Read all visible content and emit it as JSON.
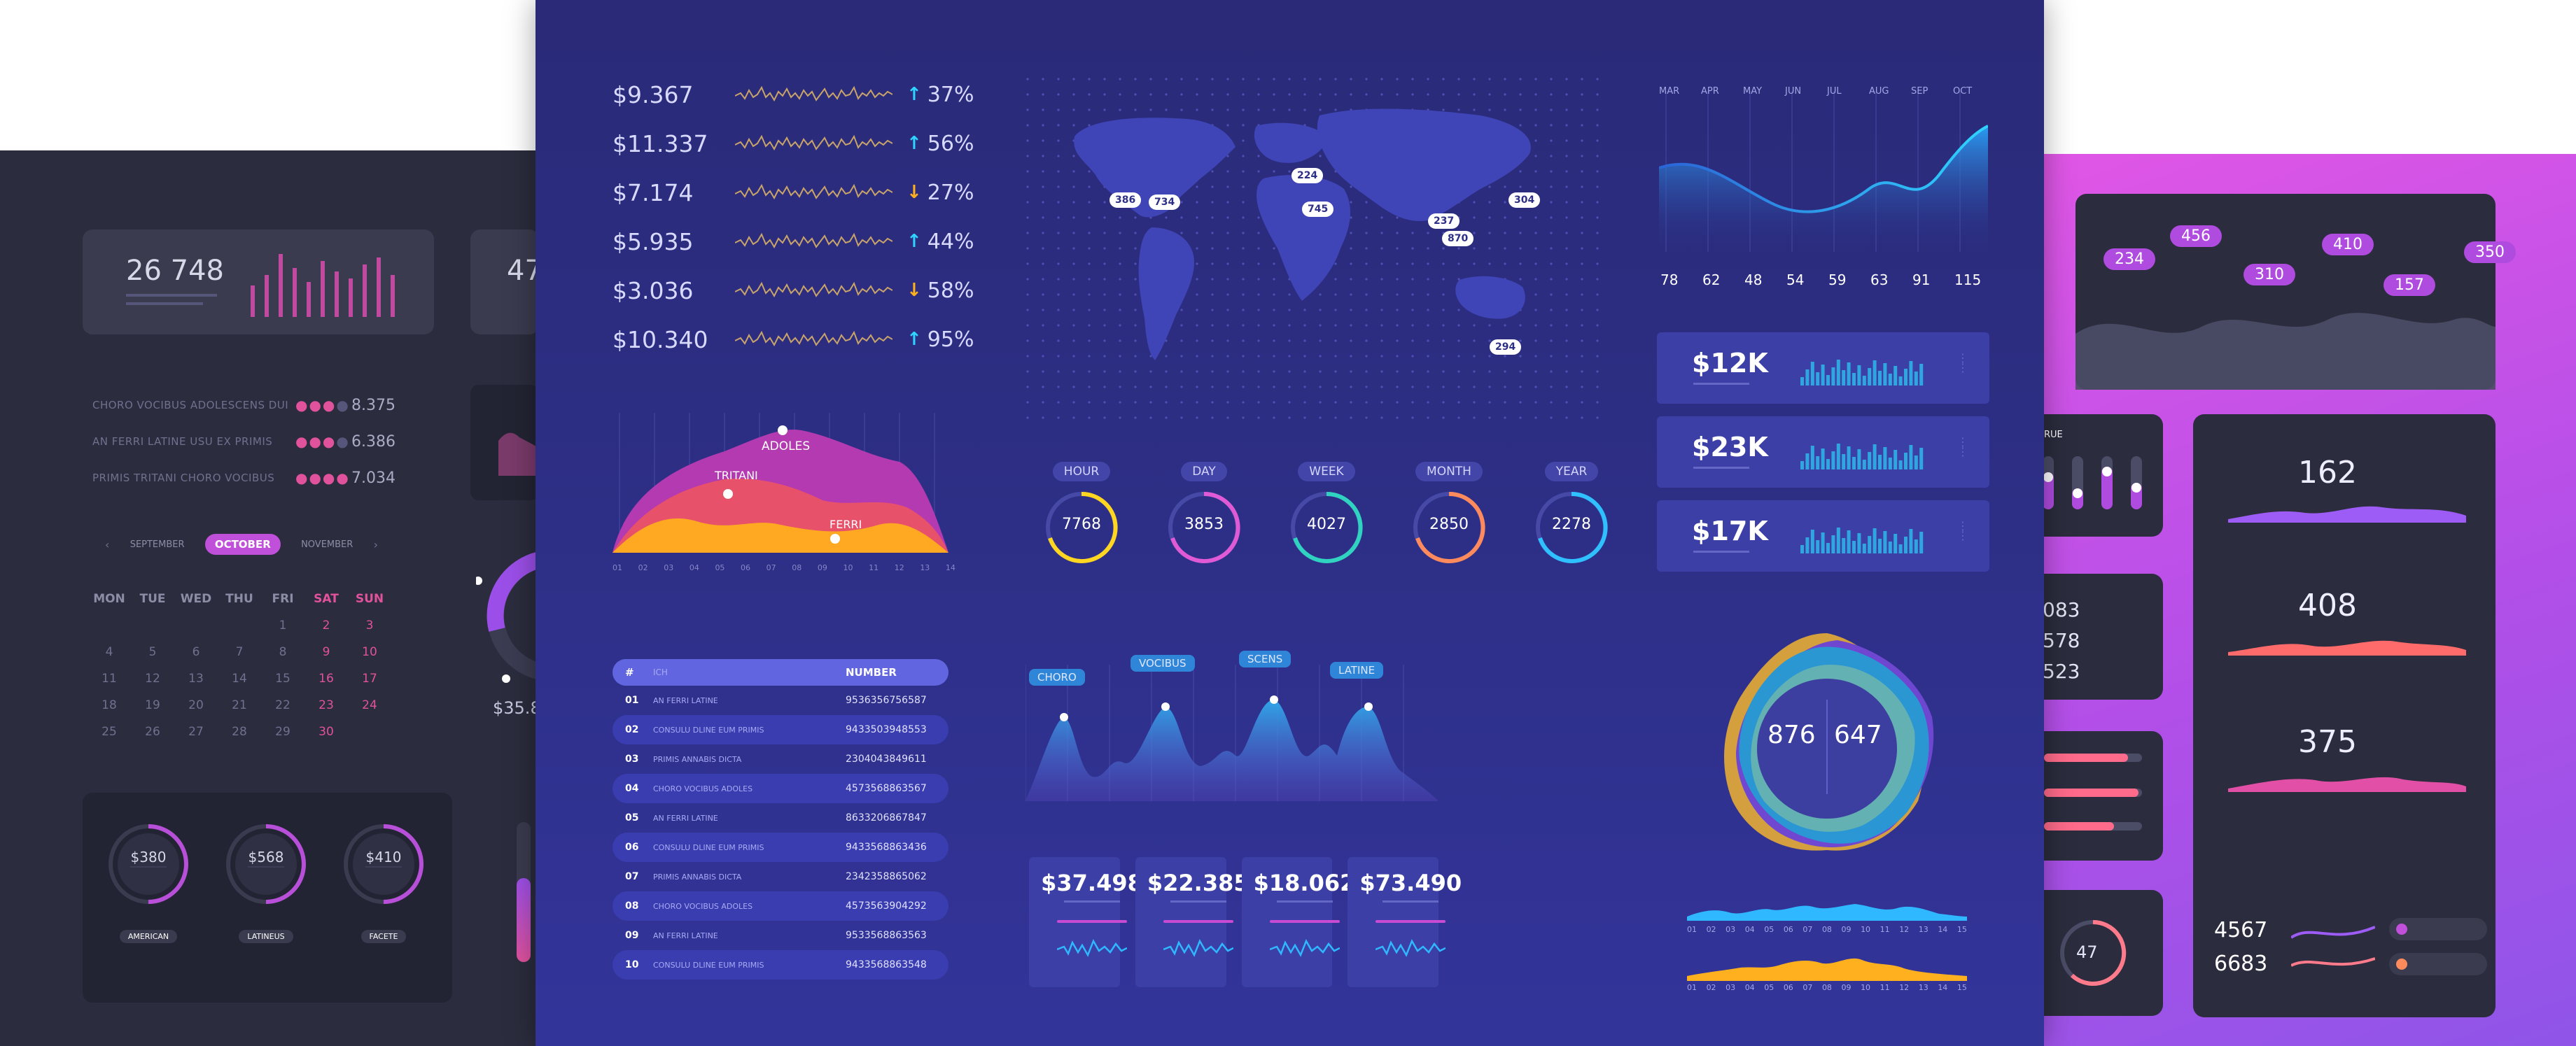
{
  "colors": {
    "accent_pink": "#e0529c",
    "accent_cyan": "#2fd3ff",
    "accent_yellow": "#ffb01f",
    "accent_purple": "#9b5cff",
    "center_bg": "#2d2f86"
  },
  "left": {
    "stat_main": "26 748",
    "stat_second": "47",
    "list": [
      {
        "label": "CHORO VOCIBUS ADOLESCENS DUI",
        "value": "8.375"
      },
      {
        "label": "AN FERRI LATINE USU EX PRIMIS",
        "value": "6.386"
      },
      {
        "label": "PRIMIS TRITANI CHORO VOCIBUS",
        "value": "7.034"
      }
    ],
    "months": {
      "prev": "SEPTEMBER",
      "current": "OCTOBER",
      "next": "NOVEMBER"
    },
    "weekdays": [
      "MON",
      "TUE",
      "WED",
      "THU",
      "FRI",
      "SAT",
      "SUN"
    ],
    "weeks": [
      [
        "",
        "",
        "",
        "",
        "1",
        "2",
        "3"
      ],
      [
        "4",
        "5",
        "6",
        "7",
        "8",
        "9",
        "10"
      ],
      [
        "11",
        "12",
        "13",
        "14",
        "15",
        "16",
        "17"
      ],
      [
        "18",
        "19",
        "20",
        "21",
        "22",
        "23",
        "24"
      ],
      [
        "25",
        "26",
        "27",
        "28",
        "29",
        "30",
        ""
      ]
    ],
    "gauges": [
      {
        "value": "$380",
        "label": "AMERICAN"
      },
      {
        "value": "$568",
        "label": "LATINEUS"
      },
      {
        "value": "$410",
        "label": "FACETE"
      }
    ],
    "partial_value": "$35.8"
  },
  "center": {
    "tickers": [
      {
        "value": "$9.367",
        "change": "37%",
        "dir": "up"
      },
      {
        "value": "$11.337",
        "change": "56%",
        "dir": "up"
      },
      {
        "value": "$7.174",
        "change": "27%",
        "dir": "down"
      },
      {
        "value": "$5.935",
        "change": "44%",
        "dir": "up"
      },
      {
        "value": "$3.036",
        "change": "58%",
        "dir": "down"
      },
      {
        "value": "$10.340",
        "change": "95%",
        "dir": "up"
      }
    ],
    "map_markers": [
      "386",
      "734",
      "224",
      "745",
      "237",
      "870",
      "304",
      "294"
    ],
    "area_labels": [
      "ADOLES",
      "TRITANI",
      "FERRI"
    ],
    "area_axis": [
      "01",
      "02",
      "03",
      "04",
      "05",
      "06",
      "07",
      "08",
      "09",
      "10",
      "11",
      "12",
      "13",
      "14"
    ],
    "periods": [
      {
        "label": "HOUR",
        "value": "7768",
        "color": "#ffd620"
      },
      {
        "label": "DAY",
        "value": "3853",
        "color": "#e05ad6"
      },
      {
        "label": "WEEK",
        "value": "4027",
        "color": "#2fd3c0"
      },
      {
        "label": "MONTH",
        "value": "2850",
        "color": "#ff8a5c"
      },
      {
        "label": "YEAR",
        "value": "2278",
        "color": "#2fc0ff"
      }
    ],
    "months_axis": [
      "MAR",
      "APR",
      "MAY",
      "JUN",
      "JUL",
      "AUG",
      "SEP",
      "OCT"
    ],
    "month_values": [
      "78",
      "62",
      "48",
      "54",
      "59",
      "63",
      "91",
      "115"
    ],
    "kpis": [
      {
        "value": "$12K"
      },
      {
        "value": "$23K"
      },
      {
        "value": "$17K"
      }
    ],
    "table": {
      "headers": [
        "#",
        "ICH",
        "NUMBER"
      ],
      "rows": [
        [
          "01",
          "AN FERRI LATINE",
          "9536356756587"
        ],
        [
          "02",
          "CONSULU DLINE EUM PRIMIS",
          "9433503948553"
        ],
        [
          "03",
          "PRIMIS ANNABIS DICTA",
          "2304043849611"
        ],
        [
          "04",
          "CHORO VOCIBUS ADOLES",
          "4573568863567"
        ],
        [
          "05",
          "AN FERRI LATINE",
          "8633206867847"
        ],
        [
          "06",
          "CONSULU DLINE EUM PRIMIS",
          "9433568863436"
        ],
        [
          "07",
          "PRIMIS ANNABIS DICTA",
          "2342358865062"
        ],
        [
          "08",
          "CHORO VOCIBUS ADOLES",
          "4573563904292"
        ],
        [
          "09",
          "AN FERRI LATINE",
          "9533568863563"
        ],
        [
          "10",
          "CONSULU DLINE EUM PRIMIS",
          "9433568863548"
        ]
      ]
    },
    "peak_labels": [
      "CHORO",
      "VOCIBUS",
      "SCENS",
      "LATINE"
    ],
    "summary": [
      {
        "value": "$37.498"
      },
      {
        "value": "$22.385"
      },
      {
        "value": "$18.062"
      },
      {
        "value": "$73.490"
      }
    ],
    "blob_values": [
      "876",
      "647"
    ],
    "wave_axis": [
      "01",
      "02",
      "03",
      "04",
      "05",
      "06",
      "07",
      "08",
      "09",
      "10",
      "11",
      "12",
      "13",
      "14",
      "15"
    ]
  },
  "right": {
    "bubbles": [
      "234",
      "456",
      "310",
      "410",
      "157",
      "350"
    ],
    "sliders_title": "RUE",
    "stats": [
      "162",
      "408",
      "375"
    ],
    "partial_nums": [
      "083",
      "578",
      "523"
    ],
    "circle": "47",
    "bottom": [
      "4567",
      "6683"
    ]
  }
}
